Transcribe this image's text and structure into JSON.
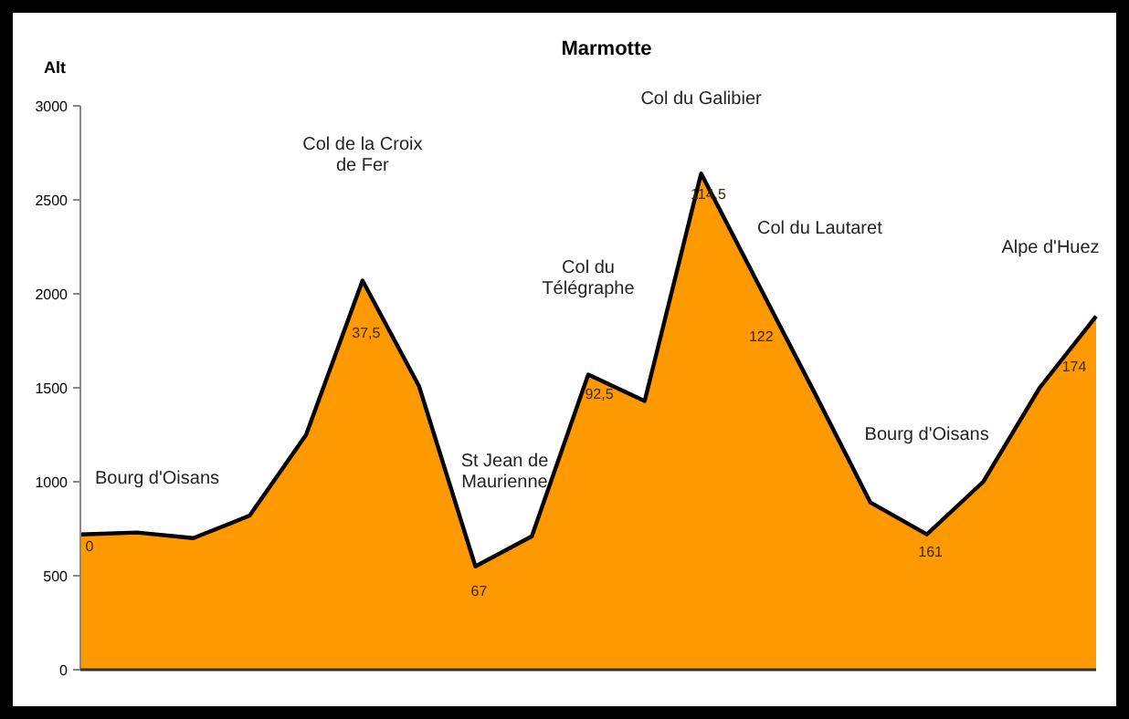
{
  "chart_data": {
    "type": "area",
    "title": "Marmotte",
    "ylabel": "Alt",
    "categories": [
      null,
      null,
      null,
      null,
      null,
      null,
      null,
      null,
      null,
      null,
      null,
      null,
      null,
      null,
      null,
      null,
      null,
      null,
      null
    ],
    "series": [
      {
        "color": "#ff9900",
        "values": [
          720,
          730,
          700,
          820,
          1250,
          2070,
          1510,
          550,
          710,
          1570,
          1430,
          2640,
          2060,
          1480,
          890,
          720,
          1000,
          1500,
          1880
        ]
      }
    ],
    "ylim": [
      0,
      3000
    ],
    "yticks": [
      0,
      500,
      1000,
      1500,
      2000,
      2500,
      3000
    ],
    "annotations": [
      "Bourg d'Oisans",
      "Col de la Croix de Fer",
      "St Jean de Maurienne",
      "Col du Télégraphe",
      "Col du Galibier",
      "Col du Lautaret",
      "Bourg d'Oisans",
      "Alpe d'Huez",
      "0",
      "37,5",
      "67",
      "92,5",
      "114,5",
      "122",
      "161",
      "174"
    ]
  }
}
